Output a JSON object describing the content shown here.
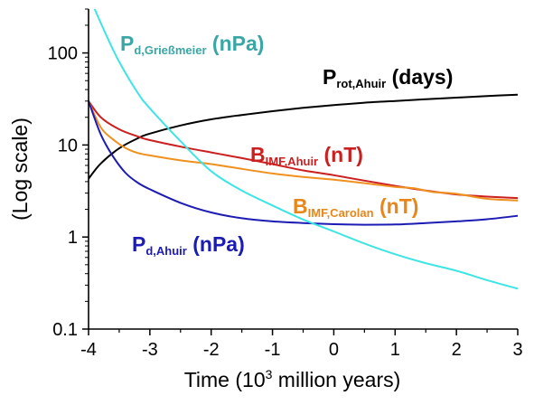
{
  "chart_data": {
    "type": "line",
    "xlabel": "Time (10",
    "xlabel_sup": "3",
    "xlabel_tail": " million years)",
    "ylabel": "(Log scale)",
    "y_scale": "log",
    "xlim": [
      -4,
      3
    ],
    "ylim": [
      0.1,
      300
    ],
    "x_ticks": [
      -4,
      -3,
      -2,
      -1,
      0,
      1,
      2,
      3
    ],
    "x_tick_labels": [
      "-4",
      "-3",
      "-2",
      "-1",
      "0",
      "1",
      "2",
      "3"
    ],
    "y_ticks": [
      0.1,
      1,
      10,
      100
    ],
    "y_tick_labels": [
      "0.1",
      "1",
      "10",
      "100"
    ],
    "grid": false,
    "series": [
      {
        "key": "prot",
        "color": "#000000",
        "points": [
          [
            -4,
            4.3
          ],
          [
            -3.8,
            6.3
          ],
          [
            -3.5,
            9.2
          ],
          [
            -3.2,
            11.8
          ],
          [
            -3,
            13.3
          ],
          [
            -2.5,
            16.3
          ],
          [
            -2,
            19.0
          ],
          [
            -1.5,
            21.2
          ],
          [
            -1,
            23.3
          ],
          [
            -0.5,
            25.3
          ],
          [
            0,
            27.1
          ],
          [
            0.5,
            28.8
          ],
          [
            1,
            30.1
          ],
          [
            1.5,
            31.4
          ],
          [
            2,
            32.7
          ],
          [
            2.5,
            34.0
          ],
          [
            3,
            35.2
          ]
        ]
      },
      {
        "key": "bimf_ahuir",
        "color": "#cc1f1f",
        "points": [
          [
            -4,
            30
          ],
          [
            -3.8,
            20
          ],
          [
            -3.5,
            14.8
          ],
          [
            -3.2,
            12.4
          ],
          [
            -3,
            11.3
          ],
          [
            -2.5,
            9.6
          ],
          [
            -2,
            8.3
          ],
          [
            -1.5,
            7.2
          ],
          [
            -1,
            6.2
          ],
          [
            -0.5,
            5.3
          ],
          [
            0,
            4.7
          ],
          [
            0.5,
            4.1
          ],
          [
            1,
            3.6
          ],
          [
            1.5,
            3.2
          ],
          [
            2,
            2.9
          ],
          [
            2.5,
            2.75
          ],
          [
            3,
            2.65
          ]
        ]
      },
      {
        "key": "bimf_carolan",
        "color": "#f0901e",
        "points": [
          [
            -4,
            30
          ],
          [
            -3.8,
            15.5
          ],
          [
            -3.6,
            11.5
          ],
          [
            -3.4,
            9.3
          ],
          [
            -3.2,
            8.2
          ],
          [
            -3,
            7.7
          ],
          [
            -2.5,
            6.8
          ],
          [
            -2,
            6.2
          ],
          [
            -1.5,
            5.5
          ],
          [
            -1,
            4.9
          ],
          [
            -0.5,
            4.5
          ],
          [
            0,
            4.2
          ],
          [
            0.5,
            3.85
          ],
          [
            1,
            3.5
          ],
          [
            1.3,
            3.4
          ],
          [
            1.6,
            3.1
          ],
          [
            2,
            2.95
          ],
          [
            2.5,
            2.6
          ],
          [
            3,
            2.5
          ]
        ]
      },
      {
        "key": "pd_ahuir",
        "color": "#1c1cb4",
        "points": [
          [
            -4,
            30
          ],
          [
            -3.8,
            13
          ],
          [
            -3.6,
            7.5
          ],
          [
            -3.4,
            5.0
          ],
          [
            -3.2,
            3.9
          ],
          [
            -3,
            3.3
          ],
          [
            -2.5,
            2.35
          ],
          [
            -2,
            1.85
          ],
          [
            -1.5,
            1.6
          ],
          [
            -1,
            1.48
          ],
          [
            -0.5,
            1.42
          ],
          [
            0,
            1.38
          ],
          [
            0.5,
            1.36
          ],
          [
            1,
            1.37
          ],
          [
            1.5,
            1.42
          ],
          [
            2,
            1.48
          ],
          [
            2.5,
            1.56
          ],
          [
            3,
            1.7
          ]
        ]
      },
      {
        "key": "pd_griessmeier",
        "color": "#3fe4e4",
        "points": [
          [
            -3.9,
            300
          ],
          [
            -3.7,
            150
          ],
          [
            -3.5,
            80
          ],
          [
            -3.2,
            37
          ],
          [
            -3,
            25
          ],
          [
            -2.5,
            11
          ],
          [
            -2,
            5.2
          ],
          [
            -1.5,
            3.2
          ],
          [
            -1,
            2.2
          ],
          [
            -0.5,
            1.55
          ],
          [
            0,
            1.15
          ],
          [
            0.5,
            0.85
          ],
          [
            1,
            0.65
          ],
          [
            1.5,
            0.52
          ],
          [
            2,
            0.43
          ],
          [
            2.5,
            0.34
          ],
          [
            3,
            0.275
          ]
        ]
      }
    ],
    "annotations": [
      {
        "key": "pd_griessmeier",
        "main": "P",
        "sub": "d,Grießmeier",
        "unit": " (nPa)",
        "color": "#3aa6a6"
      },
      {
        "key": "prot",
        "main": "P",
        "sub": "rot,Ahuir",
        "unit": " (days)",
        "color": "#000000"
      },
      {
        "key": "bimf_ahuir",
        "main": "B",
        "sub": "IMF,Ahuir",
        "unit": " (nT)",
        "color": "#cc1f1f"
      },
      {
        "key": "bimf_carolan",
        "main": "B",
        "sub": "IMF,Carolan",
        "unit": " (nT)",
        "color": "#e8861a"
      },
      {
        "key": "pd_ahuir",
        "main": "P",
        "sub": "d,Ahuir",
        "unit": " (nPa)",
        "color": "#1c1cb4"
      }
    ]
  }
}
